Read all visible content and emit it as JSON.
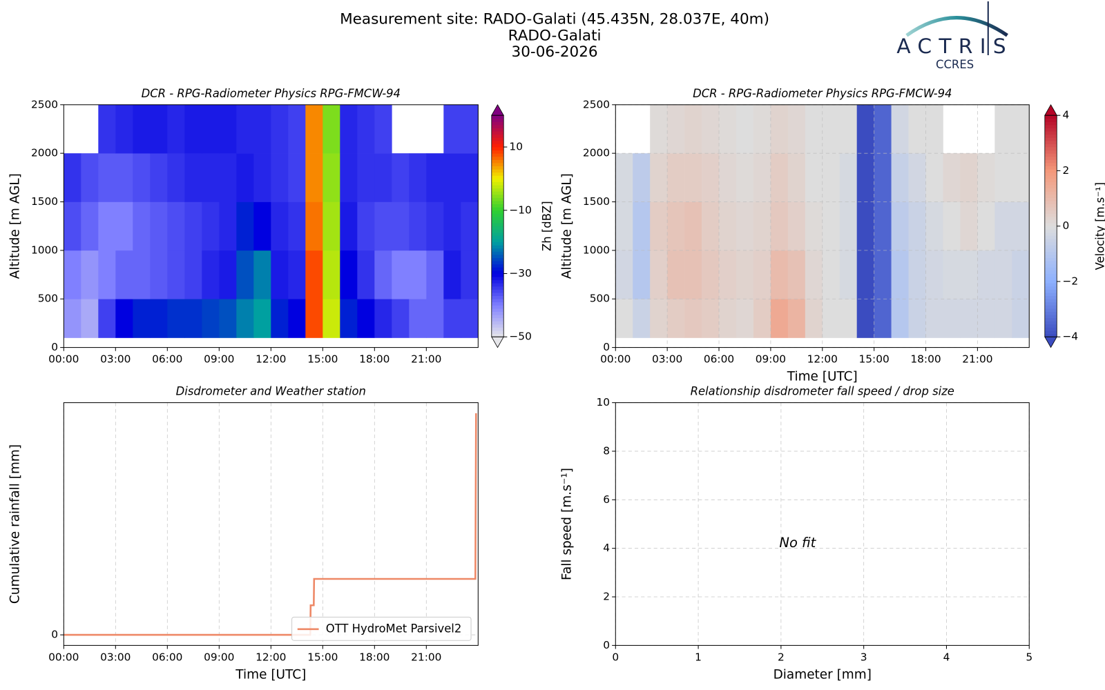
{
  "header": {
    "lines": [
      "Measurement site: RADO-Galati (45.435N, 28.037E, 40m)",
      "RADO-Galati",
      "30-06-2026"
    ]
  },
  "logo": {
    "name": "ACTRIS",
    "sub": "CCRES"
  },
  "chart_data": [
    {
      "type": "heatmap",
      "title": "DCR - RPG-Radiometer Physics RPG-FMCW-94",
      "ylabel": "Altitude [m AGL]",
      "xlim": [
        0,
        24
      ],
      "xticks": [
        {
          "value": 0,
          "label": "00:00"
        },
        {
          "value": 3,
          "label": "03:00"
        },
        {
          "value": 6,
          "label": "06:00"
        },
        {
          "value": 9,
          "label": "09:00"
        },
        {
          "value": 12,
          "label": "12:00"
        },
        {
          "value": 15,
          "label": "15:00"
        },
        {
          "value": 18,
          "label": "18:00"
        },
        {
          "value": 21,
          "label": "21:00"
        }
      ],
      "ylim": [
        0,
        2500
      ],
      "yticks": [
        0,
        500,
        1000,
        1500,
        2000,
        2500
      ],
      "grid": false,
      "colorbar_label": "Zh [dBZ]",
      "clim": [
        -50,
        20
      ],
      "cticks": [
        {
          "value": -50,
          "label": "−50"
        },
        {
          "value": -30,
          "label": "−30"
        },
        {
          "value": -10,
          "label": "−10"
        },
        10
      ],
      "colormap": [
        "#e6e6ea",
        "#8080ff",
        "#0000e0",
        "#00a0a0",
        "#30d030",
        "#f0f000",
        "#ff2000",
        "#800080"
      ],
      "xbins": [
        0,
        1,
        2,
        3,
        4,
        5,
        6,
        7,
        8,
        9,
        10,
        11,
        12,
        13,
        14,
        15,
        16,
        17,
        18,
        19,
        20,
        21,
        22,
        23,
        24
      ],
      "ybins": [
        100,
        500,
        1000,
        1500,
        2000,
        2500
      ],
      "values": [
        [
          -42,
          -44,
          -35,
          -30,
          -28,
          -28,
          -27,
          -27,
          -26,
          -25,
          -22,
          -20,
          -28,
          -30,
          8,
          -2,
          -28,
          -30,
          -33,
          -35,
          -38,
          -38,
          -35,
          -35
        ],
        [
          -40,
          -42,
          -40,
          -38,
          -38,
          -37,
          -36,
          -35,
          -33,
          -32,
          -25,
          -22,
          -32,
          -33,
          8,
          -3,
          -30,
          -34,
          -38,
          -40,
          -40,
          -38,
          -32,
          -34
        ],
        [
          -36,
          -38,
          -40,
          -40,
          -38,
          -37,
          -36,
          -35,
          -34,
          -33,
          -28,
          -30,
          -33,
          -34,
          6,
          -4,
          -32,
          -35,
          -36,
          -36,
          -35,
          -34,
          -33,
          -34
        ],
        [
          -34,
          -36,
          -37,
          -37,
          -36,
          -35,
          -34,
          -33,
          -33,
          -33,
          -32,
          -33,
          -34,
          -35,
          5,
          -5,
          -33,
          -34,
          -34,
          -35,
          -34,
          -33,
          -33,
          -33
        ],
        [
          null,
          null,
          -34,
          -33,
          -32,
          -32,
          -33,
          -32,
          -32,
          -32,
          -33,
          -33,
          -34,
          -35,
          5,
          -6,
          -33,
          -34,
          -35,
          null,
          null,
          null,
          -35,
          -35
        ]
      ]
    },
    {
      "type": "heatmap",
      "title": "DCR - RPG-Radiometer Physics RPG-FMCW-94",
      "xlabel": "Time [UTC]",
      "ylabel": "Altitude [m AGL]",
      "xlim": [
        0,
        24
      ],
      "xticks": [
        {
          "value": 0,
          "label": "00:00"
        },
        {
          "value": 3,
          "label": "03:00"
        },
        {
          "value": 6,
          "label": "06:00"
        },
        {
          "value": 9,
          "label": "09:00"
        },
        {
          "value": 12,
          "label": "12:00"
        },
        {
          "value": 15,
          "label": "15:00"
        },
        {
          "value": 18,
          "label": "18:00"
        },
        {
          "value": 21,
          "label": "21:00"
        }
      ],
      "ylim": [
        0,
        2500
      ],
      "yticks": [
        0,
        500,
        1000,
        1500,
        2000,
        2500
      ],
      "grid": true,
      "colorbar_label": "Velocity [m.s⁻¹]",
      "clim": [
        -4,
        4
      ],
      "cticks": [
        {
          "value": -4,
          "label": "−4"
        },
        {
          "value": -2,
          "label": "−2"
        },
        0,
        2,
        4
      ],
      "colormap": [
        "#3b4cc0",
        "#8db0fe",
        "#dddddd",
        "#f4987a",
        "#b40426"
      ],
      "xbins": [
        0,
        1,
        2,
        3,
        4,
        5,
        6,
        7,
        8,
        9,
        10,
        11,
        12,
        13,
        14,
        15,
        16,
        17,
        18,
        19,
        20,
        21,
        22,
        23,
        24
      ],
      "ybins": [
        100,
        500,
        1000,
        1500,
        2000,
        2500
      ],
      "values": [
        [
          0,
          -0.5,
          0.3,
          0.5,
          0.6,
          0.5,
          0.3,
          0.2,
          0.5,
          1.5,
          1.2,
          0.3,
          0,
          0,
          -4,
          -3.5,
          -1,
          -0.5,
          -0.3,
          -0.3,
          -0.3,
          -0.3,
          -0.3,
          -0.5
        ],
        [
          -0.3,
          -1,
          0.4,
          0.8,
          0.8,
          0.6,
          0.4,
          0.3,
          0.4,
          1,
          0.8,
          0.2,
          0,
          -0.2,
          -4,
          -3.5,
          -1,
          -0.5,
          -0.3,
          -0.2,
          -0.2,
          -0.3,
          -0.3,
          -0.5
        ],
        [
          -0.2,
          -1,
          0.5,
          0.7,
          0.8,
          0.5,
          0.3,
          0.2,
          0.3,
          0.6,
          0.4,
          0.1,
          0,
          -0.2,
          -4,
          -3.5,
          -0.8,
          -0.5,
          -0.2,
          0,
          0.2,
          0,
          -0.3,
          -0.3
        ],
        [
          -0.2,
          -0.8,
          0.3,
          0.5,
          0.5,
          0.4,
          0.2,
          0.1,
          0.2,
          0.5,
          0.3,
          0,
          0,
          -0.2,
          -4,
          -3.5,
          -0.6,
          -0.3,
          0,
          0.2,
          0.3,
          0.1,
          0,
          0
        ],
        [
          null,
          null,
          0.1,
          0.2,
          0.3,
          0.2,
          0.1,
          0,
          0.1,
          0.3,
          0.2,
          0,
          0,
          0,
          -4,
          -3.5,
          -0.3,
          0,
          0,
          null,
          null,
          null,
          0,
          0
        ]
      ]
    },
    {
      "type": "line",
      "title": "Disdrometer and Weather station",
      "xlabel": "Time [UTC]",
      "ylabel": "Cumulative rainfall [mm]",
      "xlim": [
        0,
        24
      ],
      "xticks": [
        {
          "value": 0,
          "label": "00:00"
        },
        {
          "value": 3,
          "label": "03:00"
        },
        {
          "value": 6,
          "label": "06:00"
        },
        {
          "value": 9,
          "label": "09:00"
        },
        {
          "value": 12,
          "label": "12:00"
        },
        {
          "value": 15,
          "label": "15:00"
        },
        {
          "value": 18,
          "label": "18:00"
        },
        {
          "value": 21,
          "label": "21:00"
        }
      ],
      "ylim": [
        -0.2,
        4.4
      ],
      "yticks": [
        0
      ],
      "grid": true,
      "legend": "lower right",
      "x": [
        0,
        14.28,
        14.3,
        14.48,
        14.5,
        23.84,
        23.88
      ],
      "series": [
        {
          "name": "OTT HydroMet Parsivel2",
          "color": "#ee8866",
          "values": [
            0,
            0,
            0.56,
            0.56,
            1.06,
            1.06,
            4.2
          ]
        }
      ]
    },
    {
      "type": "scatter",
      "title": "Relationship disdrometer fall speed / drop size",
      "xlabel": "Diameter [mm]",
      "ylabel": "Fall speed [m.s⁻¹]",
      "xlim": [
        0,
        5
      ],
      "xticks": [
        0,
        1,
        2,
        3,
        4,
        5
      ],
      "ylim": [
        0,
        10
      ],
      "yticks": [
        0,
        2,
        4,
        6,
        8,
        10
      ],
      "grid": true,
      "annotation": "No fit"
    }
  ]
}
